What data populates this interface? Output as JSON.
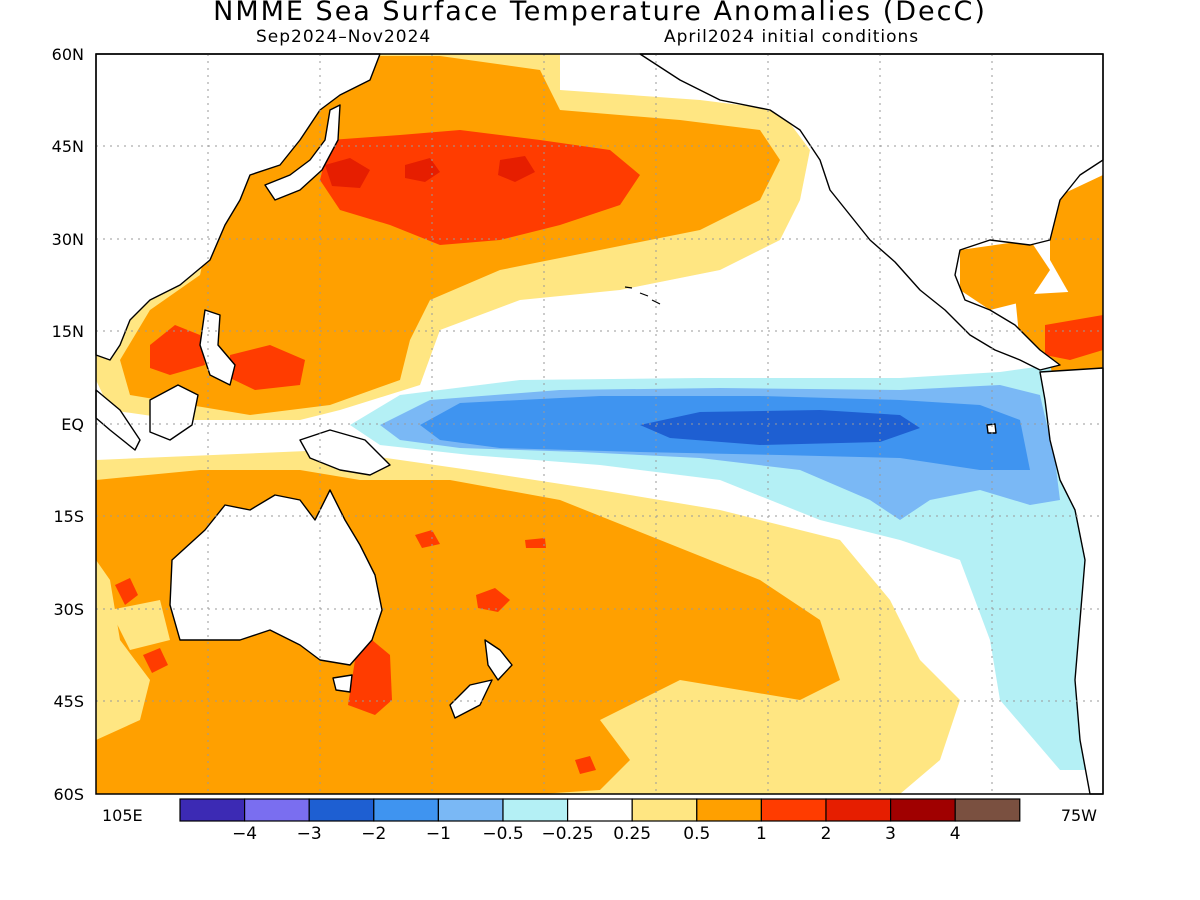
{
  "title": "NMME Sea Surface Temperature Anomalies (DecC)",
  "subtitle_left": "Sep2024–Nov2024",
  "subtitle_right": "April2024 initial conditions",
  "map": {
    "lat_labels": [
      "60N",
      "45N",
      "30N",
      "15N",
      "EQ",
      "15S",
      "30S",
      "45S",
      "60S"
    ],
    "lon_left_label": "105E",
    "lon_right_label": "75W",
    "lon_range": [
      105,
      285
    ],
    "lat_range": [
      -60,
      60
    ],
    "grid": "dotted"
  },
  "colorbar": {
    "colors": [
      "#3c2ab4",
      "#7a6ef0",
      "#1e5fd2",
      "#3f94f0",
      "#7ab8f5",
      "#b4f0f5",
      "#ffffff",
      "#ffe682",
      "#ffa000",
      "#ff3c00",
      "#e61e00",
      "#a00000",
      "#7a5040"
    ],
    "labels": [
      "−4",
      "−3",
      "−2",
      "−1",
      "−0.5",
      "−0.25",
      "0.25",
      "0.5",
      "1",
      "2",
      "3",
      "4"
    ]
  },
  "legend": {
    "ocean": "#ffffff",
    "land_outline": "#000000",
    "grid_color": "#9a9a9a"
  }
}
